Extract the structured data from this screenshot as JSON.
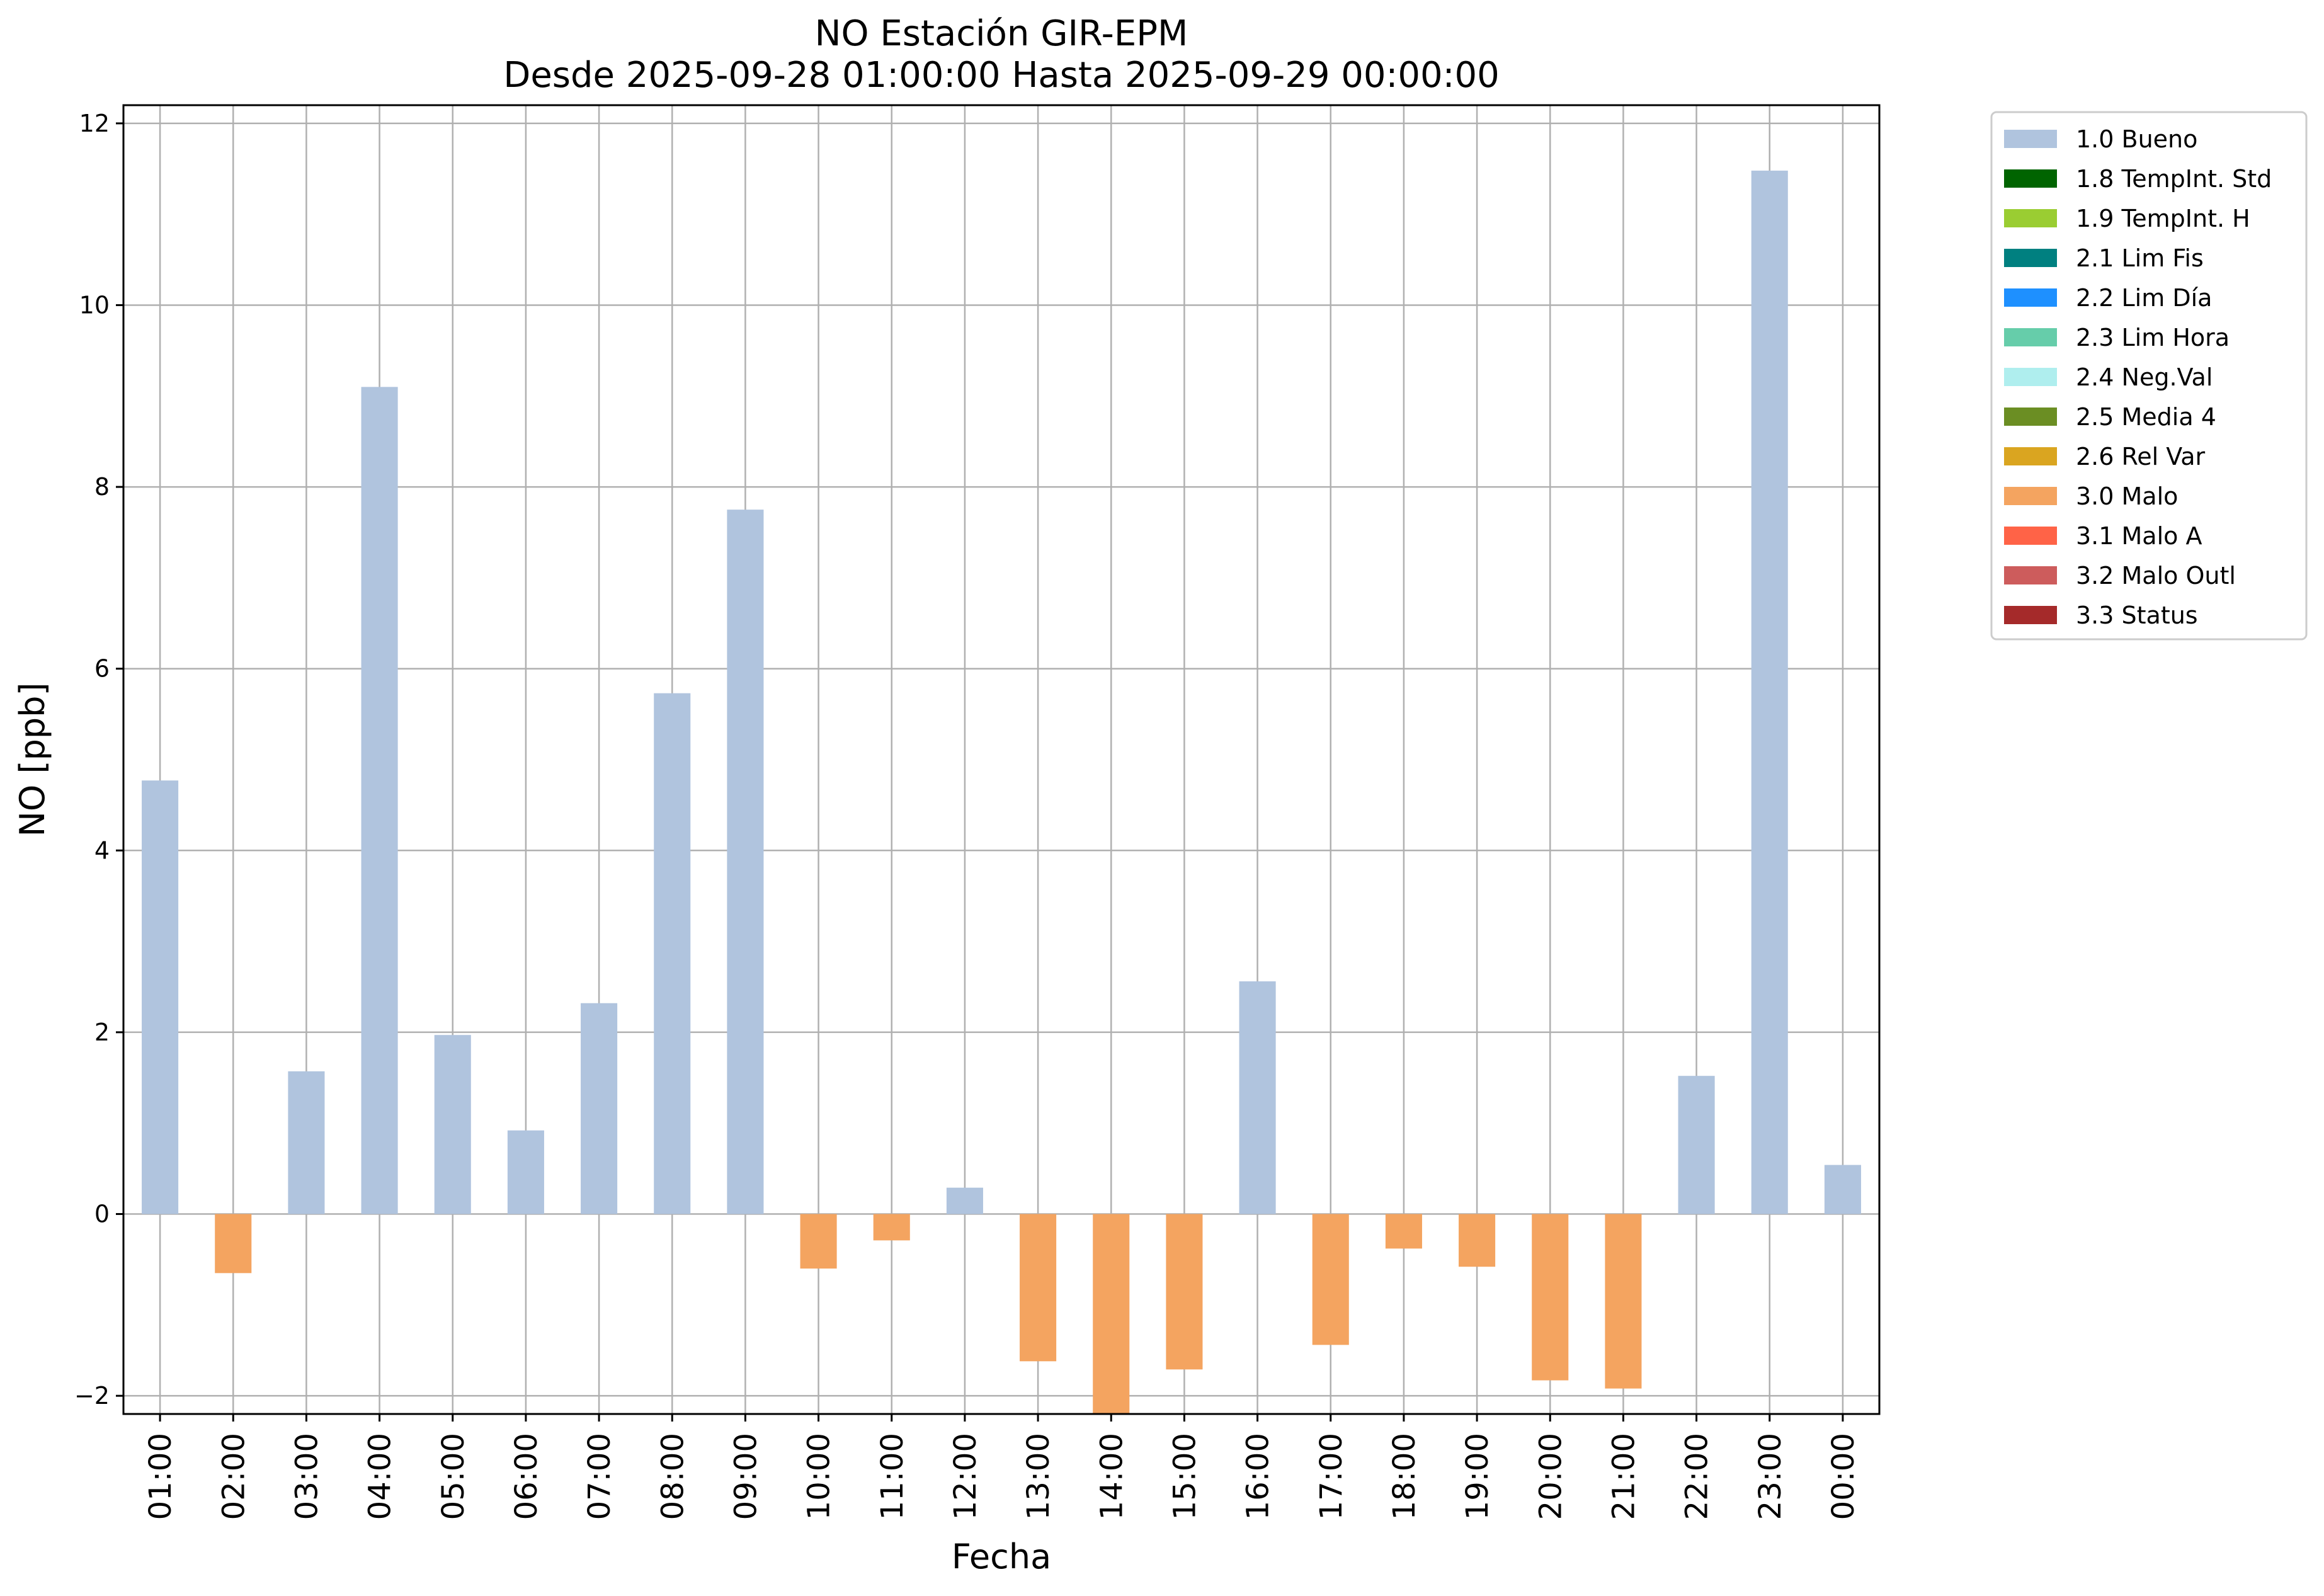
{
  "chart_data": {
    "type": "bar",
    "title": "NO Estación GIR-EPM",
    "subtitle": "Desde 2025-09-28 01:00:00 Hasta 2025-09-29 00:00:00",
    "xlabel": "Fecha",
    "ylabel": "NO [ppb]",
    "ylim": [
      -2.2,
      12.2
    ],
    "yticks": [
      -2,
      0,
      2,
      4,
      6,
      8,
      10,
      12
    ],
    "ytick_labels": [
      "−2",
      "0",
      "2",
      "4",
      "6",
      "8",
      "10",
      "12"
    ],
    "grid": true,
    "legend_position": "outside-top-right",
    "categories": [
      "01:00",
      "02:00",
      "03:00",
      "04:00",
      "05:00",
      "06:00",
      "07:00",
      "08:00",
      "09:00",
      "10:00",
      "11:00",
      "12:00",
      "13:00",
      "14:00",
      "15:00",
      "16:00",
      "17:00",
      "18:00",
      "19:00",
      "20:00",
      "21:00",
      "22:00",
      "23:00",
      "00:00"
    ],
    "values": [
      4.77,
      -0.65,
      1.57,
      9.1,
      1.97,
      0.92,
      2.32,
      5.73,
      7.75,
      -0.6,
      -0.29,
      0.29,
      -1.62,
      -2.2,
      -1.71,
      2.56,
      -1.44,
      -0.38,
      -0.58,
      -1.83,
      -1.92,
      1.52,
      11.48,
      0.54
    ],
    "flags": [
      "1.0 Bueno",
      "3.0 Malo",
      "1.0 Bueno",
      "1.0 Bueno",
      "1.0 Bueno",
      "1.0 Bueno",
      "1.0 Bueno",
      "1.0 Bueno",
      "1.0 Bueno",
      "3.0 Malo",
      "3.0 Malo",
      "1.0 Bueno",
      "3.0 Malo",
      "3.0 Malo",
      "3.0 Malo",
      "1.0 Bueno",
      "3.0 Malo",
      "3.0 Malo",
      "3.0 Malo",
      "3.0 Malo",
      "3.0 Malo",
      "1.0 Bueno",
      "1.0 Bueno",
      "1.0 Bueno"
    ],
    "legend": [
      {
        "label": "1.0 Bueno",
        "color": "#b0c4de"
      },
      {
        "label": "1.8 TempInt. Std",
        "color": "#006400"
      },
      {
        "label": "1.9 TempInt. H",
        "color": "#9acd32"
      },
      {
        "label": "2.1 Lim Fis",
        "color": "#008080"
      },
      {
        "label": "2.2 Lim Día",
        "color": "#1e90ff"
      },
      {
        "label": "2.3 Lim Hora",
        "color": "#66cdaa"
      },
      {
        "label": "2.4 Neg.Val",
        "color": "#afeeee"
      },
      {
        "label": "2.5 Media 4",
        "color": "#6b8e23"
      },
      {
        "label": "2.6 Rel Var",
        "color": "#daa520"
      },
      {
        "label": "3.0 Malo",
        "color": "#f4a460"
      },
      {
        "label": "3.1 Malo A",
        "color": "#ff6347"
      },
      {
        "label": "3.2 Malo Outl",
        "color": "#cd5c5c"
      },
      {
        "label": "3.3 Status",
        "color": "#a52a2a"
      }
    ]
  }
}
